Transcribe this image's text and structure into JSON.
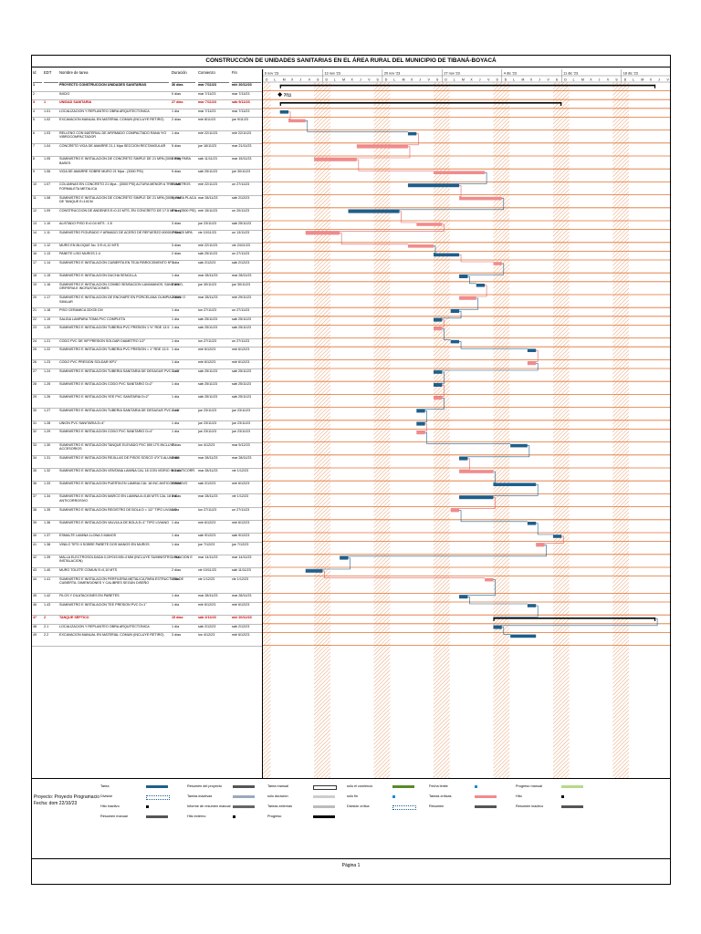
{
  "title": "CONSTRUCCIÓN DE UNIDADES SANITARIAS EN EL ÁREA RURAL DEL MUNICIPIO DE TIBANÁ-BOYACÁ",
  "headers": {
    "id": "Id",
    "wbs": "EDT",
    "name": "Nombre de tarea",
    "duration": "Duración",
    "start": "Comienzo",
    "finish": "Fin"
  },
  "timescale": {
    "months": [
      "6 nov '23",
      "13 nov '23",
      "20 nov '23",
      "27 nov '23",
      "4 dic '23",
      "11 dic '23",
      "18 dic '23"
    ],
    "days": [
      "D",
      "L",
      "M",
      "X",
      "J",
      "V",
      "S"
    ]
  },
  "rows": [
    {
      "id": "1",
      "wbs": "",
      "name": "PROYECTO CONSTRUCCION UNIDADES SANITARIAS",
      "duration": "36 días",
      "start": "mar 7/11/23",
      "finish": "mié 20/12/23",
      "type": "summary"
    },
    {
      "id": "2",
      "wbs": "",
      "name": "INICIO",
      "duration": "0 días",
      "start": "mar 7/11/23",
      "finish": "mar 7/11/23",
      "type": "milestone"
    },
    {
      "id": "3",
      "wbs": "1",
      "name": "UNIDAD SANITARIA",
      "duration": "27 días",
      "start": "mar 7/11/23",
      "finish": "sáb 9/12/23",
      "type": "critsummary"
    },
    {
      "id": "4",
      "wbs": "1.01",
      "name": "LOCALIZACION Y REPLANTEO OBRA ARQUITECTONICA",
      "duration": "1 día",
      "start": "mar 7/11/23",
      "finish": "mar 7/11/23",
      "type": "task"
    },
    {
      "id": "5",
      "wbs": "1.02",
      "name": "EXCAVACION MANUAL EN MATERIAL COMUN (INCLUYE RETIRO)",
      "duration": "2 días",
      "start": "mié 8/11/23",
      "finish": "jue 9/11/23",
      "type": "task"
    },
    {
      "id": "6",
      "wbs": "1.03",
      "name": "RELLENO CON MATERIAL DE AFIRMADO COMPACTADO RANA Y/O VIBROCOMPACTADOR",
      "duration": "1 día",
      "start": "mié 22/11/23",
      "finish": "mié 22/11/23",
      "type": "task"
    },
    {
      "id": "7",
      "wbs": "1.04",
      "name": "CONCRETO VIGA DE AMARRE 21,1 Mpa SECCION RECTANGULAR",
      "duration": "5 días",
      "start": "jue 16/11/23",
      "finish": "mar 21/11/23",
      "type": "task"
    },
    {
      "id": "8",
      "wbs": "1.05",
      "name": "SUMINISTRO E INSTALACION DE CONCRETO SIMPLE DE 21 MPA (3000 PSI) PARA BASES",
      "duration": "3 días",
      "start": "sáb 11/11/23",
      "finish": "mar 15/11/23",
      "type": "task"
    },
    {
      "id": "9",
      "wbs": "1.06",
      "name": "VIGA DE AMARRE SOBRE MURO 21 Mpa - (3000 PSI)",
      "duration": "5 días",
      "start": "sáb 25/11/23",
      "finish": "jue 30/11/23",
      "type": "task"
    },
    {
      "id": "10",
      "wbs": "1.07",
      "name": "COLUMNAS EN CONCRETO 21 Mpa - (3000 PSI) ALTURA MENOR A TRES METROS FORMALETA METALICA",
      "duration": "5 días",
      "start": "mié 22/11/23",
      "finish": "un 27/11/23",
      "type": "task"
    },
    {
      "id": "11",
      "wbs": "1.08",
      "name": "SUMINISTRO E INSTALACION DE CONCRETO SIMPLE DE 21 MPA (3000) PARA PLACA DE TANQUE E=10CM",
      "duration": "5 días",
      "start": "mar 28/11/23",
      "finish": "sáb 2/12/23",
      "type": "task"
    },
    {
      "id": "12",
      "wbs": "1.09",
      "name": "CONSTRUCCION DE ANDENES E=0.10 MTS, EN CONCRETO DE 17.5 MPa - (2500 PSI)",
      "duration": "5 días",
      "start": "mié 15/11/23",
      "finish": "un 20/11/23",
      "type": "task"
    },
    {
      "id": "13",
      "wbs": "1.10",
      "name": "ALISTADO PISO E=0.04 MTS - 1:5",
      "duration": "3 días",
      "start": "jue 23/11/23",
      "finish": "sáb 25/11/23",
      "type": "task"
    },
    {
      "id": "14",
      "wbs": "1.11",
      "name": "SUMINISTRO FIGURADO Y ARMADO DE ACERO DE REFUERZO 60000 PSI 420 MPA",
      "duration": "2 días",
      "start": "vie 10/11/23",
      "finish": "un 13/11/23",
      "type": "task"
    },
    {
      "id": "15",
      "wbs": "1.12",
      "name": "MURO EN BLOQUE No. 5 E=0,12 MTS",
      "duration": "3 días",
      "start": "mié 22/11/23",
      "finish": "vie 24/11/23",
      "type": "task"
    },
    {
      "id": "16",
      "wbs": "1.13",
      "name": "PANETE LISO MUROS 1:4",
      "duration": "2 días",
      "start": "sáb 25/11/23",
      "finish": "un 27/11/23",
      "type": "task"
    },
    {
      "id": "17",
      "wbs": "1.14",
      "name": "SUMINISTRO E INSTALACION CUBIERTA EN TEJA FIBROCEMENTO Nº 6",
      "duration": "1 día",
      "start": "sáb 2/12/23",
      "finish": "sáb 2/12/23",
      "type": "task"
    },
    {
      "id": "18",
      "wbs": "1.15",
      "name": "SUMINISTRO E INSTALACION DUCHA SENCILLA",
      "duration": "1 día",
      "start": "mar 28/11/23",
      "finish": "mar 28/11/23",
      "type": "task"
    },
    {
      "id": "19",
      "wbs": "1.16",
      "name": "SUMINISTRO E INSTALACION COMBO SENSACION LAVAMANOS, SANITARIO, GRIFERIA E INCRUSTACIONES",
      "duration": "1 día",
      "start": "jue 30/11/23",
      "finish": "jue 30/11/23",
      "type": "task"
    },
    {
      "id": "20",
      "wbs": "1.17",
      "name": "SUMINISTRO E INSTALACION DE ENCHAPE EN PORCELANA OLIMPIA 20X20 O SIMILAR",
      "duration": "2 días",
      "start": "mar 28/11/23",
      "finish": "mié 29/11/23",
      "type": "task"
    },
    {
      "id": "21",
      "wbs": "1.18",
      "name": "PISO CERAMICA 33X35 CM",
      "duration": "1 día",
      "start": "lun 27/11/23",
      "finish": "un 27/11/23",
      "type": "task"
    },
    {
      "id": "22",
      "wbs": "1.19",
      "name": "SALIDA LAMPARA TOMA PVC COMPLETA",
      "duration": "1 día",
      "start": "sáb 25/11/23",
      "finish": "sáb 25/11/23",
      "type": "task"
    },
    {
      "id": "23",
      "wbs": "1.20",
      "name": "SUMINISTRO E INSTALACION TUBERIA PVC PRESIÓN 1 ½\" RDE 13.5",
      "duration": "1 día",
      "start": "sáb 25/11/23",
      "finish": "sáb 25/11/23",
      "type": "task"
    },
    {
      "id": "24",
      "wbs": "1.21",
      "name": "CODO PVC DE 90º PRESION SOLDAR DIAMETRO 1/2\"",
      "duration": "1 día",
      "start": "lun 27/11/23",
      "finish": "un 27/11/23",
      "type": "task"
    },
    {
      "id": "25",
      "wbs": "1.22",
      "name": "SUMINISTRO E INSTALACION TUBERIA PVC PRESIÓN = 1\" RDE 13.5",
      "duration": "1 día",
      "start": "mié 6/12/23",
      "finish": "mié 6/12/23",
      "type": "task"
    },
    {
      "id": "26",
      "wbs": "1.23",
      "name": "CODO PVC PRESION SOLDAR 90º1\"",
      "duration": "1 día",
      "start": "mié 6/12/23",
      "finish": "mié 6/12/23",
      "type": "task"
    },
    {
      "id": "27",
      "wbs": "1.24",
      "name": "SUMINISTRO E INSTALACION TUBERIA SANITARIA DE DESAGUE PVC D=2\"",
      "duration": "1 día",
      "start": "sáb 25/11/23",
      "finish": "sáb 25/11/23",
      "type": "task"
    },
    {
      "id": "28",
      "wbs": "1.25",
      "name": "SUMINISTRO E INSTALACION CODO PVC SANITARIO D=2\"",
      "duration": "1 día",
      "start": "sáb 25/11/23",
      "finish": "sáb 25/11/23",
      "type": "task"
    },
    {
      "id": "29",
      "wbs": "1.26",
      "name": "SUMINISTRO E INSTALACION YEE PVC SANITARIA D=2\"",
      "duration": "1 día",
      "start": "sáb 25/11/23",
      "finish": "sáb 25/11/23",
      "type": "task"
    },
    {
      "id": "30",
      "wbs": "1.27",
      "name": "SUMINISTRO E INSTALACION TUBERIA SANITARIA DE DESAGUE PVC D=4\"",
      "duration": "1 día",
      "start": "jue 23/11/23",
      "finish": "jue 23/11/23",
      "type": "task"
    },
    {
      "id": "31",
      "wbs": "1.28",
      "name": "UNION PVC SANITARIA D=4\"",
      "duration": "1 día",
      "start": "jue 23/11/23",
      "finish": "jue 23/11/23",
      "type": "task"
    },
    {
      "id": "32",
      "wbs": "1.29",
      "name": "SUMINISTRO E INSTALACION CODO PVC SANITARIO D=4\"",
      "duration": "1 día",
      "start": "jue 23/11/23",
      "finish": "jue 23/11/23",
      "type": "task"
    },
    {
      "id": "33",
      "wbs": "1.30",
      "name": "SUMINISTRO E INSTALACION TANQUE ELEVADO PVC 500 LTS INCLUYE ACCESORIOS",
      "duration": "2 días",
      "start": "lun 4/12/23",
      "finish": "mar 5/12/23",
      "type": "task"
    },
    {
      "id": "34",
      "wbs": "1.31",
      "name": "SUMINISTRO E INSTALACION REJILLAS DE PISOS SOSCO 4\"X\"3 ALUMINIO",
      "duration": "1 día",
      "start": "mar 28/11/23",
      "finish": "mar 28/11/23",
      "type": "task"
    },
    {
      "id": "35",
      "wbs": "1.32",
      "name": "SUMINISTRO E INSTALACION VENTANA LAMINA CAL 18 CON VIDRIO INC ANTICORR.",
      "duration": "4 días",
      "start": "mar 28/11/23",
      "finish": "vie 1/12/23",
      "type": "task"
    },
    {
      "id": "36",
      "wbs": "1.33",
      "name": "SUMINISTRO E INSTALACION PUERTA EN LAMINA CAL 18 INC ANTICORROSIVO",
      "duration": "4 días",
      "start": "sáb 2/12/23",
      "finish": "mié 6/12/23",
      "type": "task"
    },
    {
      "id": "37",
      "wbs": "1.34",
      "name": "SUMINISTRO E INSTALACION MARCO EN LAMINA A=0,80 MTS CAL 18 INC. ANTICORROSIVO",
      "duration": "4 días",
      "start": "mar 28/11/23",
      "finish": "vie 1/12/23",
      "type": "task"
    },
    {
      "id": "38",
      "wbs": "1.35",
      "name": "SUMINISTRO E INSTALACION REGISTRO DE BOLA D = 1/2\" TIPO LIVIANO",
      "duration": "1 día",
      "start": "lun 27/11/23",
      "finish": "un 27/11/23",
      "type": "task"
    },
    {
      "id": "39",
      "wbs": "1.36",
      "name": "SUMINISTRO E INSTALACION VALVULA DE BOLA D=1\" TIPO LIVIANO",
      "duration": "1 día",
      "start": "mié 6/12/23",
      "finish": "mié 6/12/23",
      "type": "task"
    },
    {
      "id": "40",
      "wbs": "1.37",
      "name": "ESMALTE LAMINA 1LONA 3 MANOS",
      "duration": "1 día",
      "start": "sáb 9/12/23",
      "finish": "sáb 9/12/23",
      "type": "task"
    },
    {
      "id": "41",
      "wbs": "1.38",
      "name": "VINILO TIPO II SOBRE PAÑETE DOS MANOS EN MUROS",
      "duration": "1 día",
      "start": "jue 7/12/23",
      "finish": "jue 7/12/23",
      "type": "task"
    },
    {
      "id": "42",
      "wbs": "1.39",
      "name": "MALLA ELECTROSOLDADA 0,15*015 M5=4 MM (INCLUYE SUMINISTRO, FIJACION E INSTALACION)",
      "duration": "1 día",
      "start": "mar 14/11/23",
      "finish": "mar 14/11/23",
      "type": "task"
    },
    {
      "id": "43",
      "wbs": "1.40",
      "name": "MURO TOLETE COMUN E=0,10 MTS",
      "duration": "2 días",
      "start": "vie 10/11/23",
      "finish": "sáb 11/11/23",
      "type": "task"
    },
    {
      "id": "44",
      "wbs": "1.41",
      "name": "SUMINISTRO E INSTALACION PERFILERIA METALICA PARA ESTRUCTURA DE CUBIERTA. DIMENSIONES Y CALIBRES SEGÚN DISEÑO",
      "duration": "1 día",
      "start": "vie 1/12/23",
      "finish": "vie 1/12/23",
      "type": "task"
    },
    {
      "id": "45",
      "wbs": "1.42",
      "name": "FILOS Y DILATACIONES EN PAÑETES",
      "duration": "1 día",
      "start": "mar 28/11/23",
      "finish": "mar 28/11/23",
      "type": "task"
    },
    {
      "id": "46",
      "wbs": "1.43",
      "name": "SUMINISTRO E INSTALACION TEE PRESION PVC D=1\"",
      "duration": "1 día",
      "start": "mié 6/12/23",
      "finish": "mié 6/12/23",
      "type": "task"
    },
    {
      "id": "47",
      "wbs": "2",
      "name": "TANQUE SÉPTICO",
      "duration": "15 días",
      "start": "sáb 2/12/23",
      "finish": "mié 20/12/23",
      "type": "critsummary"
    },
    {
      "id": "48",
      "wbs": "2.1",
      "name": "LOCALIZACION Y REPLANTEO OBRA ARQUITECTONICA",
      "duration": "1 día",
      "start": "sáb 2/12/23",
      "finish": "sáb 2/12/23",
      "type": "task"
    },
    {
      "id": "49",
      "wbs": "2.2",
      "name": "EXCAVACION MANUAL EN MATERIAL COMUN (INCLUYE RETIRO)",
      "duration": "3 días",
      "start": "lun 4/12/23",
      "finish": "mié 6/12/23",
      "type": "task"
    }
  ],
  "milestone_label": "7/11",
  "project_info": {
    "line1": "Proyecto: Proyecto Programacio",
    "line2": "Fecha: dom 22/10/23"
  },
  "legend": [
    {
      "label": "Tarea",
      "kind": "task"
    },
    {
      "label": "Resumen del proyecto",
      "kind": "projsummary"
    },
    {
      "label": "Tarea manual",
      "kind": "manual"
    },
    {
      "label": "sólo el comienzo",
      "kind": "startonly"
    },
    {
      "label": "Fecha límite",
      "kind": "deadline"
    },
    {
      "label": "Progreso manual",
      "kind": "manualprog"
    },
    {
      "label": "División",
      "kind": "split"
    },
    {
      "label": "Tareas inactivas",
      "kind": "inactive"
    },
    {
      "label": "sólo duración",
      "kind": "duronly"
    },
    {
      "label": "sólo fin",
      "kind": "finishonly"
    },
    {
      "label": "Tareas críticas",
      "kind": "critical"
    },
    {
      "label": "Hito",
      "kind": "milestone"
    },
    {
      "label": "Hito inactivo",
      "kind": "inactivems"
    },
    {
      "label": "Informe de resumen manual",
      "kind": "manualsummaryrollup"
    },
    {
      "label": "Tareas externas",
      "kind": "external"
    },
    {
      "label": "División crítica",
      "kind": "critsplit"
    },
    {
      "label": "Resumen",
      "kind": "summary"
    },
    {
      "label": "Resumen inactivo",
      "kind": "inactivesummary"
    },
    {
      "label": "Resumen manual",
      "kind": "manualsummary"
    },
    {
      "label": "Hito externo",
      "kind": "externalms"
    },
    {
      "label": "Progreso",
      "kind": "progress"
    }
  ],
  "footer": "Página 1",
  "colors": {
    "task": "#1f5f8b",
    "critical": "#f08c8c",
    "link_blue": "#1f5f8b",
    "link_red": "#e06060",
    "hatch": "#e8a070",
    "grid": "#e07030"
  }
}
